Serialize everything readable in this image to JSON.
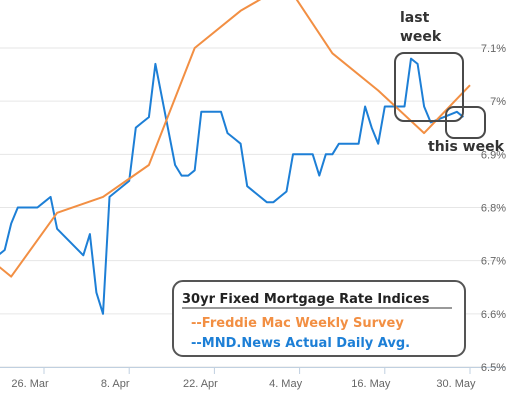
{
  "chart_data": {
    "type": "line",
    "title": "",
    "xlabel": "",
    "ylabel": "",
    "ylim": [
      6.5,
      7.1
    ],
    "y_ticks": [
      "6.5%",
      "6.6%",
      "6.7%",
      "6.8%",
      "6.9%",
      "7%",
      "7.1%"
    ],
    "x_ticks": [
      "26. Mar",
      "8. Apr",
      "22. Apr",
      "4. May",
      "16. May",
      "30. May"
    ],
    "grid": "horizontal",
    "legend_placement": "bottom-right",
    "legend": {
      "title": "30yr Fixed Mortgage Rate Indices",
      "items": [
        {
          "label": "--Freddie Mac Weekly Survey",
          "color": "#f28f43"
        },
        {
          "label": "--MND.News Actual Daily Avg.",
          "color": "#1d7fd6"
        }
      ]
    },
    "annotations": [
      {
        "text": "last",
        "target": "last-week-box"
      },
      {
        "text": "week",
        "target": "last-week-box"
      },
      {
        "text": "this week",
        "target": "this-week-box"
      }
    ],
    "series": [
      {
        "name": "--MND.News Actual Daily Avg.",
        "color": "#1d7fd6",
        "x": [
          "2024-03-18",
          "2024-03-19",
          "2024-03-20",
          "2024-03-21",
          "2024-03-22",
          "2024-03-25",
          "2024-03-26",
          "2024-03-27",
          "2024-03-28",
          "2024-04-01",
          "2024-04-02",
          "2024-04-03",
          "2024-04-04",
          "2024-04-05",
          "2024-04-08",
          "2024-04-09",
          "2024-04-10",
          "2024-04-11",
          "2024-04-12",
          "2024-04-15",
          "2024-04-16",
          "2024-04-17",
          "2024-04-18",
          "2024-04-19",
          "2024-04-22",
          "2024-04-23",
          "2024-04-24",
          "2024-04-25",
          "2024-04-26",
          "2024-04-29",
          "2024-04-30",
          "2024-05-01",
          "2024-05-02",
          "2024-05-03",
          "2024-05-06",
          "2024-05-07",
          "2024-05-08",
          "2024-05-09",
          "2024-05-10",
          "2024-05-13",
          "2024-05-14",
          "2024-05-15",
          "2024-05-16",
          "2024-05-17",
          "2024-05-20",
          "2024-05-21",
          "2024-05-22",
          "2024-05-23",
          "2024-05-24",
          "2024-05-28",
          "2024-05-29"
        ],
        "values": [
          6.74,
          6.71,
          6.72,
          6.77,
          6.8,
          6.8,
          6.81,
          6.82,
          6.76,
          6.71,
          6.75,
          6.64,
          6.6,
          6.82,
          6.85,
          6.95,
          6.96,
          6.97,
          7.07,
          6.88,
          6.86,
          6.86,
          6.87,
          6.98,
          6.98,
          6.94,
          6.93,
          6.92,
          6.84,
          6.81,
          6.81,
          6.82,
          6.83,
          6.9,
          6.9,
          6.86,
          6.9,
          6.9,
          6.92,
          6.92,
          6.99,
          6.95,
          6.92,
          6.99,
          6.99,
          7.08,
          7.07,
          6.99,
          6.96,
          6.98,
          6.97
        ]
      },
      {
        "name": "--Freddie Mac Weekly Survey",
        "color": "#f28f43",
        "x": [
          "2024-03-14",
          "2024-03-21",
          "2024-03-28",
          "2024-04-04",
          "2024-04-11",
          "2024-04-18",
          "2024-04-25",
          "2024-05-02",
          "2024-05-09",
          "2024-05-16",
          "2024-05-23",
          "2024-05-30"
        ],
        "values": [
          6.74,
          6.67,
          6.79,
          6.82,
          6.88,
          7.1,
          7.17,
          7.22,
          7.09,
          7.02,
          6.94,
          7.03
        ]
      }
    ]
  }
}
